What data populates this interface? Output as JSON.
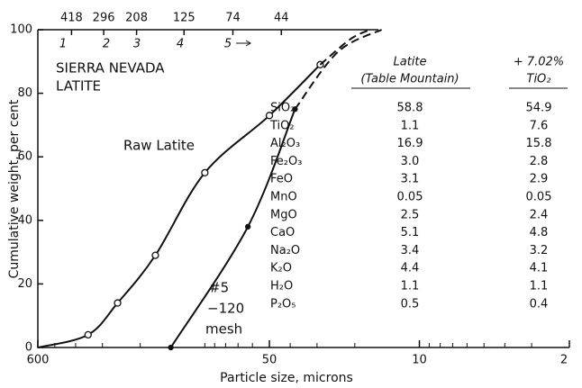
{
  "chart_data": {
    "type": "line",
    "y_label": "Cumulative weight, per cent",
    "x_label": "Particle size, microns",
    "title_lines": [
      "SIERRA NEVADA",
      "LATITE"
    ],
    "xlim": [
      600,
      2
    ],
    "xlog": true,
    "xticks": [
      600,
      50,
      10,
      2
    ],
    "xminor": [
      500,
      400,
      300,
      200,
      100,
      90,
      80,
      70,
      60,
      40,
      30,
      20,
      9,
      8,
      7,
      6,
      5,
      4,
      3
    ],
    "ylim": [
      0,
      100
    ],
    "yticks": [
      0,
      20,
      40,
      60,
      80,
      100
    ],
    "top_ticks": [
      418,
      296,
      208,
      125,
      74,
      44
    ],
    "fraction_labels": [
      "1",
      "2",
      "3",
      "4",
      "5"
    ],
    "series": [
      {
        "name": "Raw Latite",
        "color": "#111111",
        "marker": "open",
        "x": [
          600,
          350,
          255,
          170,
          100,
          50,
          29
        ],
        "values": [
          0,
          4,
          14,
          29,
          55,
          73,
          89
        ],
        "markers": [
          false,
          true,
          true,
          true,
          true,
          true,
          true
        ]
      },
      {
        "color": "#111111",
        "dash": true,
        "x": [
          29,
          21,
          17
        ],
        "values": [
          89,
          97,
          100
        ]
      },
      {
        "name_lines": [
          "#5",
          "−120",
          "mesh"
        ],
        "color": "#111111",
        "marker": "filled",
        "x": [
          144,
          63,
          38
        ],
        "values": [
          0,
          38,
          75
        ],
        "markers": [
          true,
          true,
          true
        ]
      },
      {
        "color": "#111111",
        "dash": true,
        "x": [
          38,
          24,
          15
        ],
        "values": [
          75,
          93,
          100
        ]
      }
    ]
  },
  "table": {
    "headers": [
      [
        "Latite",
        "(Table Mountain)"
      ],
      [
        "+ 7.02%",
        "TiO₂"
      ]
    ],
    "rows": [
      [
        "SiO₂",
        "58.8",
        "54.9"
      ],
      [
        "TiO₂",
        "1.1",
        "7.6"
      ],
      [
        "Al₂O₃",
        "16.9",
        "15.8"
      ],
      [
        "Fe₂O₃",
        "3.0",
        "2.8"
      ],
      [
        "FeO",
        "3.1",
        "2.9"
      ],
      [
        "MnO",
        "0.05",
        "0.05"
      ],
      [
        "MgO",
        "2.5",
        "2.4"
      ],
      [
        "CaO",
        "5.1",
        "4.8"
      ],
      [
        "Na₂O",
        "3.4",
        "3.2"
      ],
      [
        "K₂O",
        "4.4",
        "4.1"
      ],
      [
        "H₂O",
        "1.1",
        "1.1"
      ],
      [
        "P₂O₅",
        "0.5",
        "0.4"
      ]
    ]
  }
}
